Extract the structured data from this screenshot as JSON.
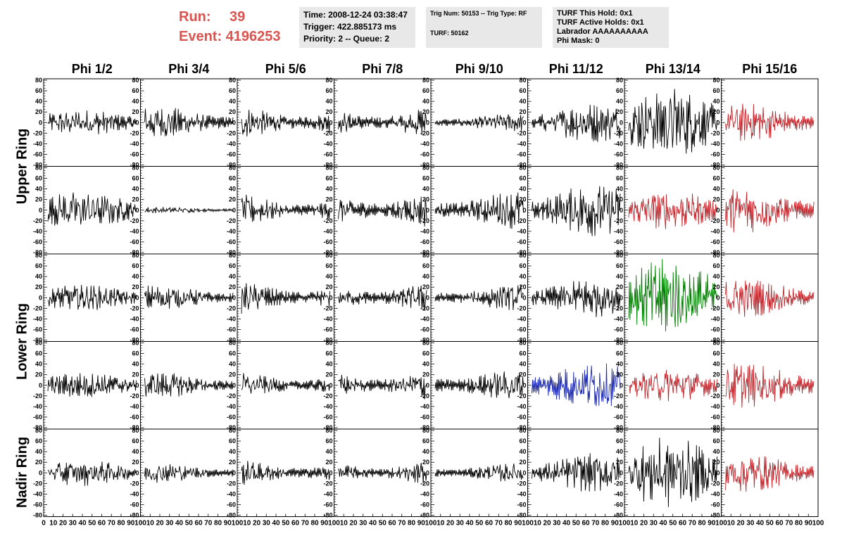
{
  "header": {
    "run_label": "Run:",
    "run_value": "39",
    "event_label": "Event:",
    "event_value": "4196253"
  },
  "time_pane": {
    "time": "Time: 2008-12-24 03:38:47",
    "trigger": "Trigger: 422.885173 ms",
    "priority": "Priority: 2 -- Queue: 2"
  },
  "trig_pane": {
    "trig": "Trig Num: 50153 -- Trig Type: RF",
    "turf": "TURF: 50162"
  },
  "turf_pane": {
    "hold": "TURF This Hold: 0x1",
    "active": "TURF Active Holds: 0x1",
    "labrador": "Labrador AAAAAAAAAA",
    "mask": "Phi Mask: 0"
  },
  "columns": [
    "Phi 1/2",
    "Phi 3/4",
    "Phi 5/6",
    "Phi 7/8",
    "Phi 9/10",
    "Phi 11/12",
    "Phi 13/14",
    "Phi 15/16"
  ],
  "rows": [
    {
      "label": "Upper Ring",
      "span": [
        0,
        1
      ]
    },
    {
      "label": "Lower Ring",
      "span": [
        2,
        3
      ]
    },
    {
      "label": "Nadir Ring",
      "span": [
        4,
        4
      ]
    }
  ],
  "y_ticks": [
    "80",
    "60",
    "40",
    "20",
    "0",
    "-20",
    "-40",
    "-60",
    "-80"
  ],
  "x_tick_labels": [
    "0",
    "10",
    "20",
    "30",
    "40",
    "50",
    "60",
    "70",
    "80",
    "90",
    "100"
  ],
  "colors": {
    "normal": "#000000",
    "red": "#c0272d",
    "green": "#008000",
    "blue": "#1f2bb0",
    "title": "#d9534f"
  },
  "chart_data": {
    "type": "line",
    "xlim": [
      0,
      100
    ],
    "ylim": [
      -80,
      80
    ],
    "waveforms": [
      [
        "normal",
        "normal",
        "normal",
        "normal",
        "normal",
        "normal",
        "normal",
        "red"
      ],
      [
        "normal",
        "normal",
        "normal",
        "normal",
        "normal",
        "normal",
        "red",
        "red"
      ],
      [
        "normal",
        "normal",
        "normal",
        "normal",
        "normal",
        "normal",
        "green",
        "red"
      ],
      [
        "normal",
        "normal",
        "normal",
        "normal",
        "normal",
        "blue",
        "red",
        "red"
      ],
      [
        "normal",
        "normal",
        "normal",
        "normal",
        "normal",
        "normal",
        "normal",
        "red"
      ]
    ],
    "amplitudes": [
      [
        20,
        25,
        25,
        25,
        15,
        30,
        55,
        30
      ],
      [
        30,
        5,
        25,
        30,
        30,
        40,
        30,
        35
      ],
      [
        20,
        20,
        25,
        25,
        20,
        30,
        60,
        30
      ],
      [
        20,
        20,
        20,
        25,
        25,
        35,
        25,
        35
      ],
      [
        20,
        15,
        20,
        20,
        15,
        30,
        55,
        30
      ]
    ]
  }
}
